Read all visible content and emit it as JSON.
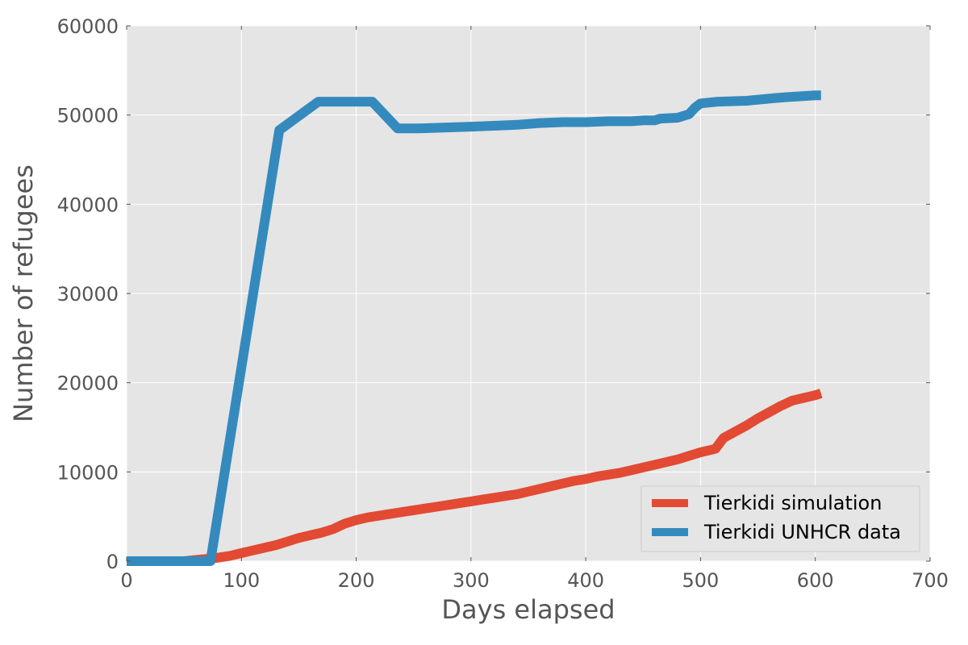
{
  "chart_data": {
    "type": "line",
    "title": "",
    "xlabel": "Days elapsed",
    "ylabel": "Number of refugees",
    "xlim": [
      0,
      700
    ],
    "ylim": [
      0,
      60000
    ],
    "x_ticks": [
      0,
      100,
      200,
      300,
      400,
      500,
      600,
      700
    ],
    "y_ticks": [
      0,
      10000,
      20000,
      30000,
      40000,
      50000,
      60000
    ],
    "grid": true,
    "legend_position": "bottom-right",
    "background_color": "#e5e5e5",
    "series": [
      {
        "name": "Tierkidi simulation",
        "color": "#e24a33",
        "x": [
          0,
          50,
          65,
          75,
          80,
          90,
          100,
          110,
          120,
          130,
          140,
          150,
          160,
          170,
          180,
          185,
          190,
          200,
          210,
          220,
          230,
          240,
          250,
          260,
          270,
          280,
          290,
          300,
          310,
          320,
          330,
          340,
          350,
          360,
          370,
          380,
          390,
          400,
          410,
          420,
          430,
          440,
          450,
          460,
          470,
          480,
          490,
          500,
          510,
          513,
          520,
          530,
          540,
          550,
          560,
          570,
          580,
          590,
          600,
          605
        ],
        "y": [
          0,
          0,
          200,
          300,
          400,
          600,
          900,
          1200,
          1500,
          1800,
          2200,
          2600,
          2900,
          3200,
          3600,
          3900,
          4200,
          4600,
          4900,
          5100,
          5300,
          5500,
          5700,
          5900,
          6100,
          6300,
          6500,
          6700,
          6900,
          7100,
          7300,
          7500,
          7800,
          8100,
          8400,
          8700,
          9000,
          9200,
          9500,
          9700,
          9900,
          10200,
          10500,
          10800,
          11100,
          11400,
          11800,
          12200,
          12500,
          12600,
          13800,
          14500,
          15200,
          16000,
          16700,
          17400,
          18000,
          18300,
          18600,
          18800
        ]
      },
      {
        "name": "Tierkidi UNHCR data",
        "color": "#348abd",
        "x": [
          0,
          55,
          73,
          133,
          167,
          214,
          236,
          255,
          300,
          340,
          360,
          380,
          400,
          420,
          440,
          450,
          460,
          465,
          480,
          490,
          495,
          500,
          515,
          540,
          565,
          575,
          600,
          605
        ],
        "y": [
          0,
          0,
          0,
          48300,
          51500,
          51500,
          48500,
          48500,
          48700,
          48900,
          49100,
          49200,
          49200,
          49300,
          49300,
          49400,
          49400,
          49600,
          49700,
          50100,
          50800,
          51300,
          51500,
          51600,
          51900,
          52000,
          52200,
          52200
        ]
      }
    ]
  }
}
